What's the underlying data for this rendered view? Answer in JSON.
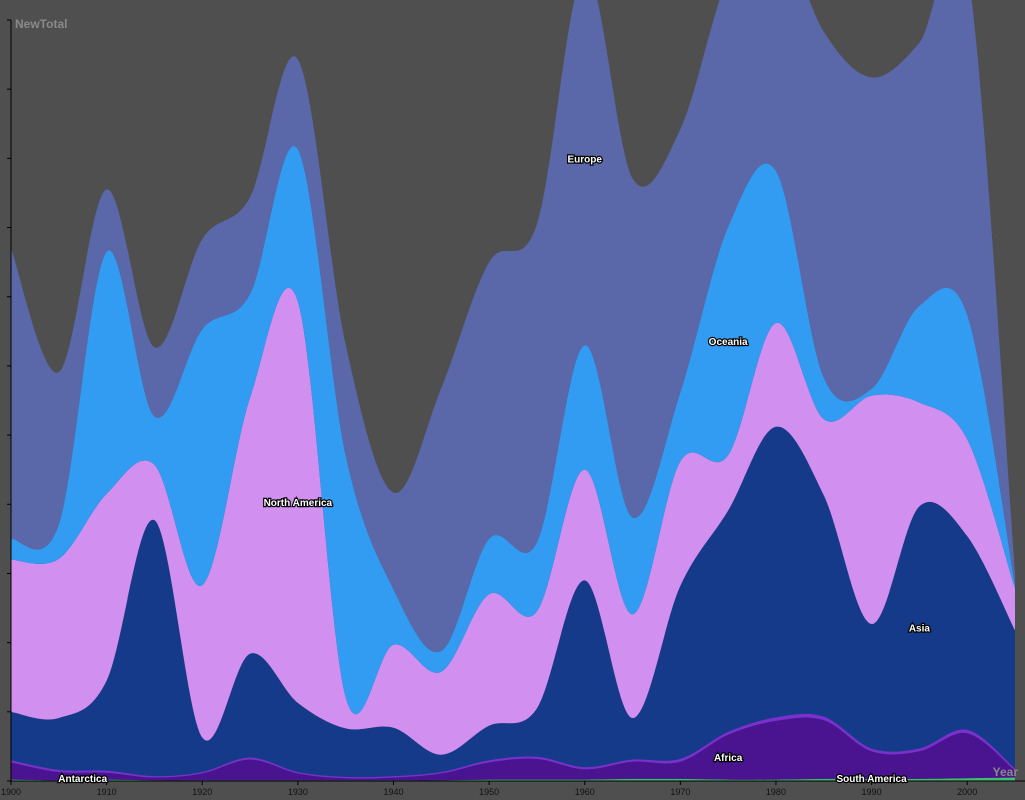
{
  "chart_data": {
    "type": "area",
    "xlabel": "Year",
    "ylabel": "NewTotal",
    "xlim": [
      1900,
      2005
    ],
    "ylim": [
      0,
      110
    ],
    "x_ticks": [
      1900,
      1910,
      1920,
      1930,
      1940,
      1950,
      1960,
      1970,
      1980,
      1990,
      2000
    ],
    "y_ticks": [
      0,
      10,
      20,
      30,
      40,
      50,
      60,
      70,
      80,
      90,
      100,
      110
    ],
    "grid": false,
    "legend": "none",
    "x": [
      1900,
      1905,
      1910,
      1915,
      1920,
      1925,
      1930,
      1935,
      1940,
      1945,
      1950,
      1955,
      1960,
      1965,
      1970,
      1975,
      1980,
      1985,
      1990,
      1995,
      2000,
      2005
    ],
    "series": [
      {
        "name": "Antarctica",
        "color": "#3dbf6e",
        "values": [
          0.2,
          0.1,
          0.2,
          0.1,
          0.1,
          0.1,
          0.1,
          0.1,
          0.1,
          0.1,
          0.2,
          0.2,
          0.2,
          0.3,
          0.3,
          0.2,
          0.2,
          0.3,
          0.3,
          0.3,
          0.4,
          0.5
        ]
      },
      {
        "name": "Africa",
        "color": "#4a1490",
        "values": [
          2.5,
          1.2,
          1.0,
          0.4,
          1.0,
          3.0,
          1.0,
          0.3,
          0.4,
          1.0,
          2.5,
          3.0,
          1.5,
          2.5,
          2.5,
          6.5,
          8.5,
          8.5,
          4.0,
          4.0,
          6.5,
          1.0
        ]
      },
      {
        "name": "South America",
        "color": "#7a2fd0",
        "values": [
          0.3,
          0.3,
          0.3,
          0.2,
          0.2,
          0.3,
          0.2,
          0.2,
          0.2,
          0.2,
          0.3,
          0.3,
          0.3,
          0.3,
          0.4,
          0.4,
          0.5,
          0.5,
          0.4,
          0.4,
          0.5,
          0.3
        ]
      },
      {
        "name": "Asia",
        "color": "#153a8a",
        "values": [
          7.0,
          7.5,
          13.0,
          37.0,
          5.0,
          15.0,
          10.0,
          7.0,
          7.0,
          2.5,
          5.0,
          7.0,
          27.0,
          6.0,
          25.0,
          32.0,
          42.0,
          32.0,
          18.0,
          35.0,
          28.0,
          20.0
        ]
      },
      {
        "name": "North America",
        "color": "#d18ff0",
        "values": [
          22.0,
          23.0,
          27.0,
          8.0,
          22.0,
          37.0,
          58.0,
          4.5,
          12.0,
          12.0,
          19.0,
          14.0,
          16.0,
          15.0,
          18.0,
          8.0,
          15.0,
          11.0,
          33.0,
          15.0,
          14.0,
          6.0
        ]
      },
      {
        "name": "Oceania",
        "color": "#329bf2",
        "values": [
          3.0,
          5.0,
          35.0,
          7.0,
          37.0,
          15.0,
          22.0,
          35.0,
          8.0,
          3.0,
          8.0,
          10.0,
          18.0,
          14.0,
          10.0,
          33.0,
          22.0,
          6.0,
          1.0,
          14.0,
          18.0,
          0.5
        ]
      },
      {
        "name": "Europe",
        "color": "#5a67a8",
        "values": [
          42.0,
          22.0,
          9.0,
          10.0,
          13.0,
          14.0,
          13.0,
          16.0,
          14.0,
          38.0,
          40.0,
          46.0,
          54.0,
          49.0,
          38.0,
          36.0,
          35.0,
          50.0,
          45.0,
          38.0,
          50.0,
          2.0
        ]
      }
    ],
    "labels": [
      "Antarctica",
      "Africa",
      "South America",
      "Asia",
      "North America",
      "Oceania",
      "Europe"
    ]
  }
}
